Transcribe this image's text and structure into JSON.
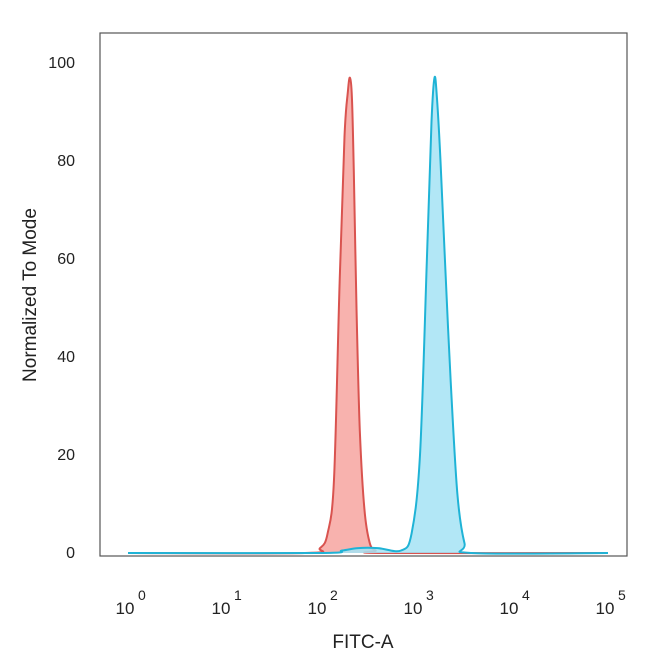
{
  "chart_data": {
    "type": "area",
    "title": "",
    "xlabel": "FITC-A",
    "ylabel": "Normalized To Mode",
    "x_scale": "log",
    "xlim": [
      1,
      100000
    ],
    "ylim": [
      0,
      105
    ],
    "xticks": [
      {
        "value": 1,
        "base": "10",
        "exp": "0"
      },
      {
        "value": 10,
        "base": "10",
        "exp": "1"
      },
      {
        "value": 100,
        "base": "10",
        "exp": "2"
      },
      {
        "value": 1000,
        "base": "10",
        "exp": "3"
      },
      {
        "value": 10000,
        "base": "10",
        "exp": "4"
      },
      {
        "value": 100000,
        "base": "10",
        "exp": "5"
      }
    ],
    "yticks": [
      "0",
      "20",
      "40",
      "60",
      "80",
      "100"
    ],
    "grid": false,
    "legend": "none",
    "series": [
      {
        "color": "#d9534f",
        "fill": "#f7a5a0",
        "x": [
          1,
          70,
          100,
          120,
          140,
          160,
          180,
          195,
          205,
          215,
          225,
          240,
          260,
          290,
          330,
          380,
          450,
          100000
        ],
        "y": [
          0,
          0,
          1,
          4,
          15,
          55,
          85,
          94,
          97,
          93,
          78,
          50,
          25,
          9,
          2,
          0.5,
          0,
          0
        ]
      },
      {
        "color": "#1fb3d6",
        "fill": "#a5e3f5",
        "x": [
          1,
          100,
          170,
          250,
          400,
          700,
          900,
          1100,
          1300,
          1450,
          1560,
          1650,
          1800,
          2000,
          2300,
          2700,
          3200,
          3800,
          100000
        ],
        "y": [
          0,
          0,
          0.5,
          1,
          1,
          0.5,
          4,
          20,
          60,
          88,
          97,
          93,
          80,
          60,
          35,
          12,
          2,
          0,
          0
        ]
      }
    ]
  }
}
